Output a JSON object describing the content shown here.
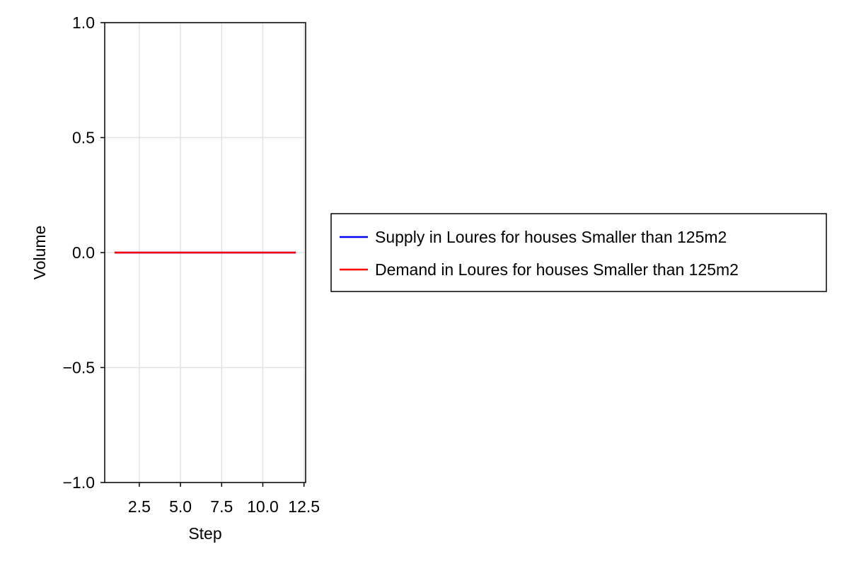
{
  "chart_data": {
    "type": "line",
    "xlabel": "Step",
    "ylabel": "Volume",
    "xlim": [
      0.4,
      12.6
    ],
    "ylim": [
      -1.0,
      1.0
    ],
    "xticks": [
      2.5,
      5.0,
      7.5,
      10.0,
      12.5
    ],
    "xtick_labels": [
      "2.5",
      "5.0",
      "7.5",
      "10.0",
      "12.5"
    ],
    "yticks": [
      -1.0,
      -0.5,
      0.0,
      0.5,
      1.0
    ],
    "ytick_labels": [
      "−1.0",
      "−0.5",
      "0.0",
      "0.5",
      "1.0"
    ],
    "grid": true,
    "legend_position": "right",
    "x": [
      1,
      2,
      3,
      4,
      5,
      6,
      7,
      8,
      9,
      10,
      11,
      12
    ],
    "series": [
      {
        "name": "Supply in Loures for houses Smaller than 125m2",
        "color": "#0000ff",
        "values": [
          0,
          0,
          0,
          0,
          0,
          0,
          0,
          0,
          0,
          0,
          0,
          0
        ]
      },
      {
        "name": "Demand in Loures for houses Smaller than 125m2",
        "color": "#ff0000",
        "values": [
          0,
          0,
          0,
          0,
          0,
          0,
          0,
          0,
          0,
          0,
          0,
          0
        ]
      }
    ]
  }
}
